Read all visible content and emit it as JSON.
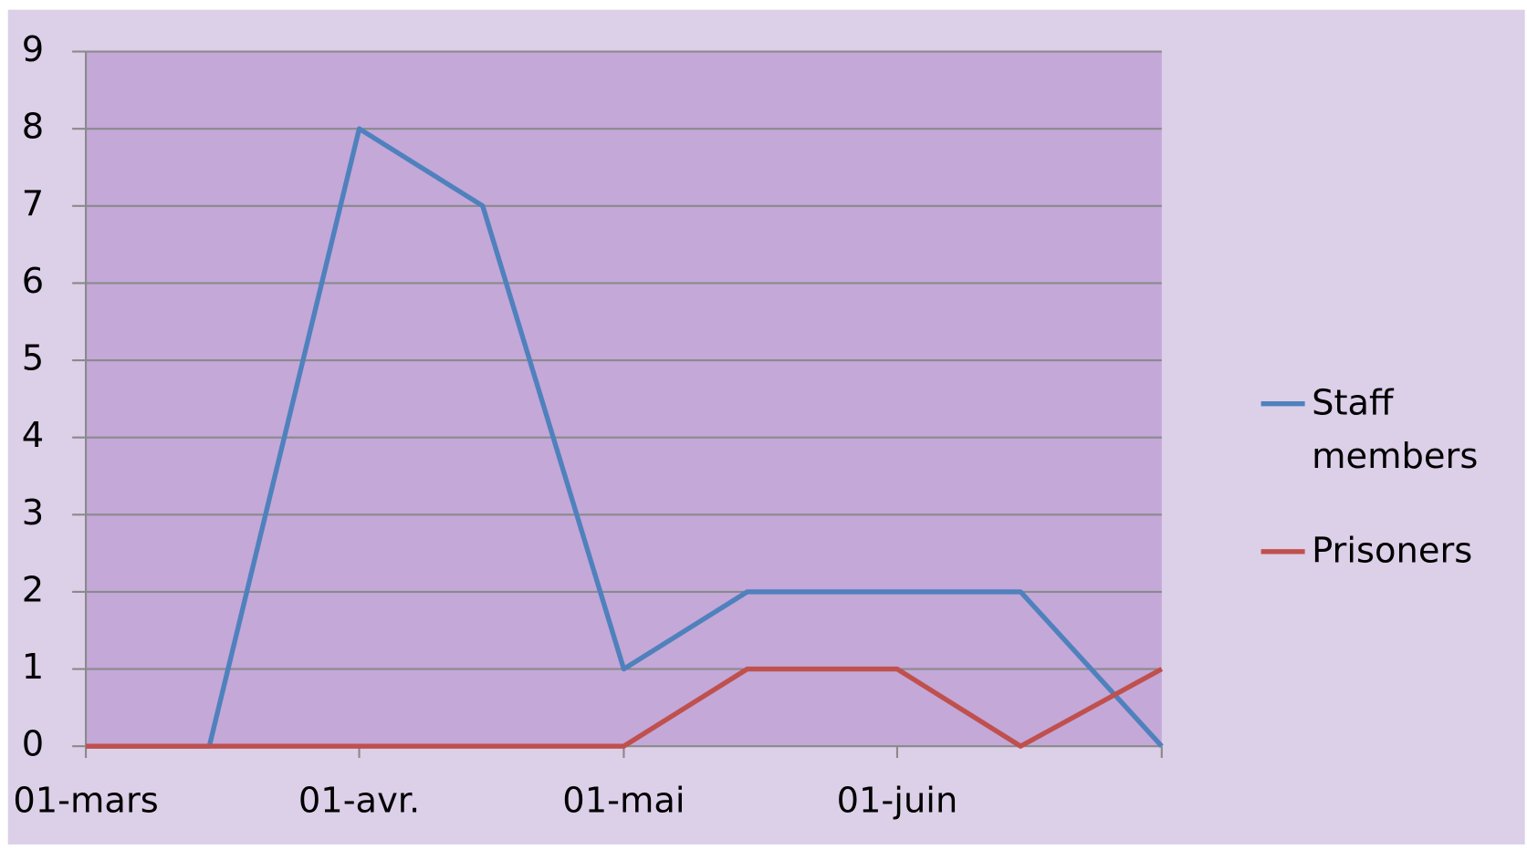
{
  "chart_data": {
    "type": "line",
    "x": [
      "03-01",
      "03-15",
      "04-01",
      "04-15",
      "05-01",
      "05-15",
      "06-01",
      "06-15",
      "07-01"
    ],
    "series": [
      {
        "name": "Staff members",
        "color": "#4f81bd",
        "values": [
          0,
          0,
          8,
          7,
          1,
          2,
          2,
          2,
          0
        ]
      },
      {
        "name": "Prisoners",
        "color": "#c0504d",
        "values": [
          0,
          0,
          0,
          0,
          0,
          1,
          1,
          0,
          1
        ]
      }
    ],
    "xlim": [
      "03-01",
      "07-01"
    ],
    "xticks": [
      {
        "value": "03-01",
        "label": "01-mars"
      },
      {
        "value": "04-01",
        "label": "01-avr."
      },
      {
        "value": "05-01",
        "label": "01-mai"
      },
      {
        "value": "06-01",
        "label": "01-juin"
      }
    ],
    "ylim": [
      0,
      9
    ],
    "yticks": [
      0,
      1,
      2,
      3,
      4,
      5,
      6,
      7,
      8,
      9
    ],
    "grid": true,
    "legend": "right"
  }
}
